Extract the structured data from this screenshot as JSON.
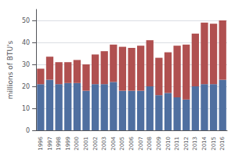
{
  "chart_data": {
    "type": "bar",
    "stacked": true,
    "categories": [
      "1996",
      "1997",
      "1998",
      "1999",
      "2000",
      "2001",
      "2002",
      "2003",
      "2004",
      "2005",
      "2006",
      "2007",
      "2008",
      "2009",
      "2010",
      "2011",
      "2012",
      "2013",
      "2014",
      "2015",
      "2016"
    ],
    "series": [
      {
        "color": "#4f6fa0",
        "values": [
          21,
          23,
          21,
          21.5,
          21.5,
          18,
          21,
          21,
          22,
          18,
          18,
          18,
          20,
          16,
          17,
          15,
          14,
          20,
          21,
          21,
          23
        ]
      },
      {
        "color": "#b05050",
        "values": [
          7,
          10.5,
          10,
          9.5,
          10.5,
          12,
          13.5,
          15,
          17,
          20,
          19.5,
          20.5,
          21,
          17,
          18.5,
          23.5,
          25,
          24,
          28,
          27.5,
          27
        ]
      }
    ],
    "ylabel": "millions of BTU's",
    "ylim": [
      0,
      55
    ],
    "yticks": [
      0,
      10,
      20,
      30,
      40,
      50
    ],
    "grid": true
  }
}
